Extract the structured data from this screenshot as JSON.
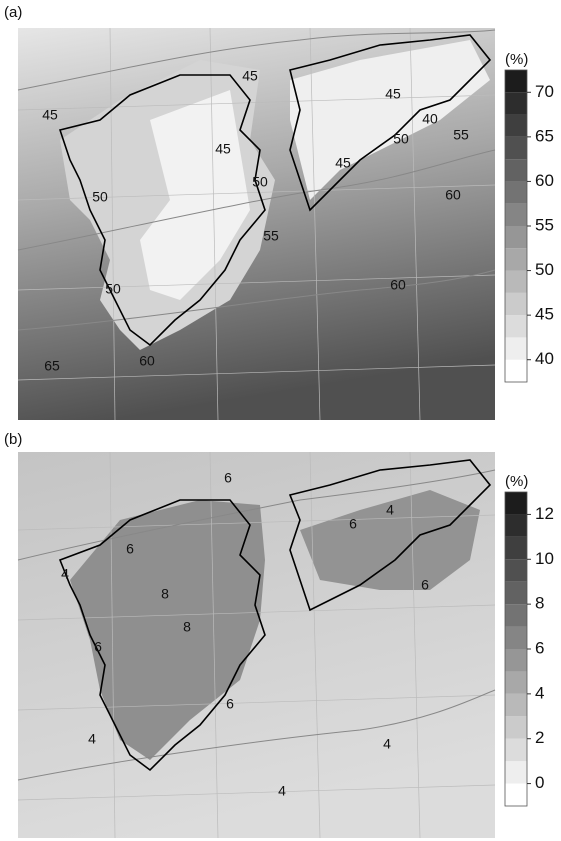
{
  "panels": [
    {
      "label": "(a)",
      "colorbar": {
        "unit": "(%)",
        "lim": [
          37.5,
          72.5
        ],
        "ticks": [
          40,
          45,
          50,
          55,
          60,
          65,
          70
        ],
        "band_step": 2.5,
        "colormap": [
          "#ffffff",
          "#1c1c1c"
        ]
      },
      "contour_labels": [
        45,
        45,
        45,
        40,
        50,
        55,
        45,
        45,
        50,
        60,
        50,
        55,
        60,
        50,
        60,
        65
      ]
    },
    {
      "label": "(b)",
      "colorbar": {
        "unit": "(%)",
        "lim": [
          -1,
          13
        ],
        "ticks": [
          0,
          2,
          4,
          6,
          8,
          10,
          12
        ],
        "band_step": 1,
        "colormap": [
          "#ffffff",
          "#1c1c1c"
        ]
      },
      "contour_labels": [
        6,
        4,
        6,
        6,
        4,
        8,
        6,
        8,
        6,
        6,
        4,
        4,
        4
      ]
    }
  ]
}
